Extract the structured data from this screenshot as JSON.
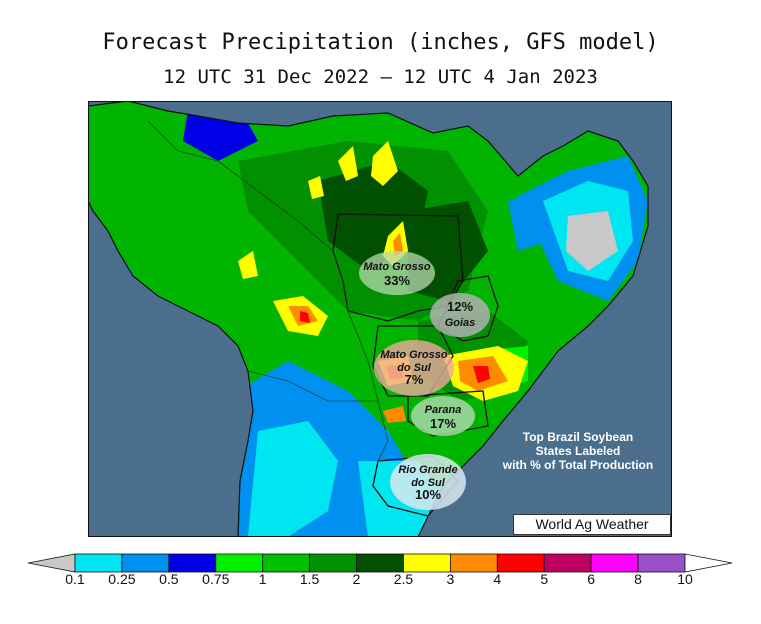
{
  "title": "Forecast Precipitation (inches, GFS model)",
  "subtitle": "12 UTC 31 Dec 2022 — 12 UTC 4 Jan 2023",
  "states": [
    {
      "name": "Mato Grosso",
      "pct": "33%"
    },
    {
      "name": "Goias",
      "pct": "12%"
    },
    {
      "name": "Mato Grosso do Sul",
      "name_line1": "Mato Grosso",
      "name_line2": "do Sul",
      "pct": "7%"
    },
    {
      "name": "Parana",
      "pct": "17%"
    },
    {
      "name": "Rio Grande do Sul",
      "name_line1": "Rio Grande",
      "name_line2": "do Sul",
      "pct": "10%"
    }
  ],
  "note": {
    "line1": "Top Brazil Soybean",
    "line2": "States Labeled",
    "line3": "with % of Total Production"
  },
  "credit": "World Ag Weather",
  "legend": {
    "ticks": [
      "0.1",
      "0.25",
      "0.5",
      "0.75",
      "1",
      "1.5",
      "2",
      "2.5",
      "3",
      "4",
      "5",
      "6",
      "8",
      "10"
    ],
    "colors": [
      "#00e6f0",
      "#0090f0",
      "#0000e6",
      "#00f000",
      "#00c000",
      "#009000",
      "#005000",
      "#ffff00",
      "#ff8c00",
      "#ff0000",
      "#c00060",
      "#ff00ff",
      "#9a50c8"
    ],
    "under_color": "#c8c8c8",
    "over_color": "#ffffff"
  },
  "colors": {
    "ocean": "#4a6e8c",
    "land_nodata": "#c8c8c8"
  }
}
